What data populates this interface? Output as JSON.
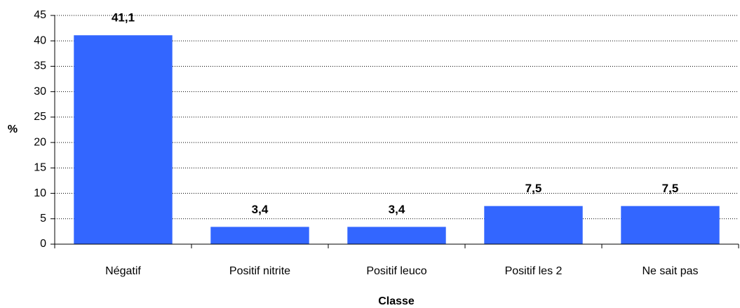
{
  "chart_data": {
    "type": "bar",
    "x_label": "Classe",
    "y_label": "%",
    "categories": [
      "Négatif",
      "Positif nitrite",
      "Positif leuco",
      "Positif les 2",
      "Ne sait pas"
    ],
    "values": [
      41.1,
      3.4,
      3.4,
      7.5,
      7.5
    ],
    "value_labels": [
      "41,1",
      "3,4",
      "3,4",
      "7,5",
      "7,5"
    ],
    "color": "#3366ff",
    "ylim": [
      0,
      45
    ],
    "yticks": [
      0,
      5,
      10,
      15,
      20,
      25,
      30,
      35,
      40,
      45
    ],
    "grid": true
  }
}
